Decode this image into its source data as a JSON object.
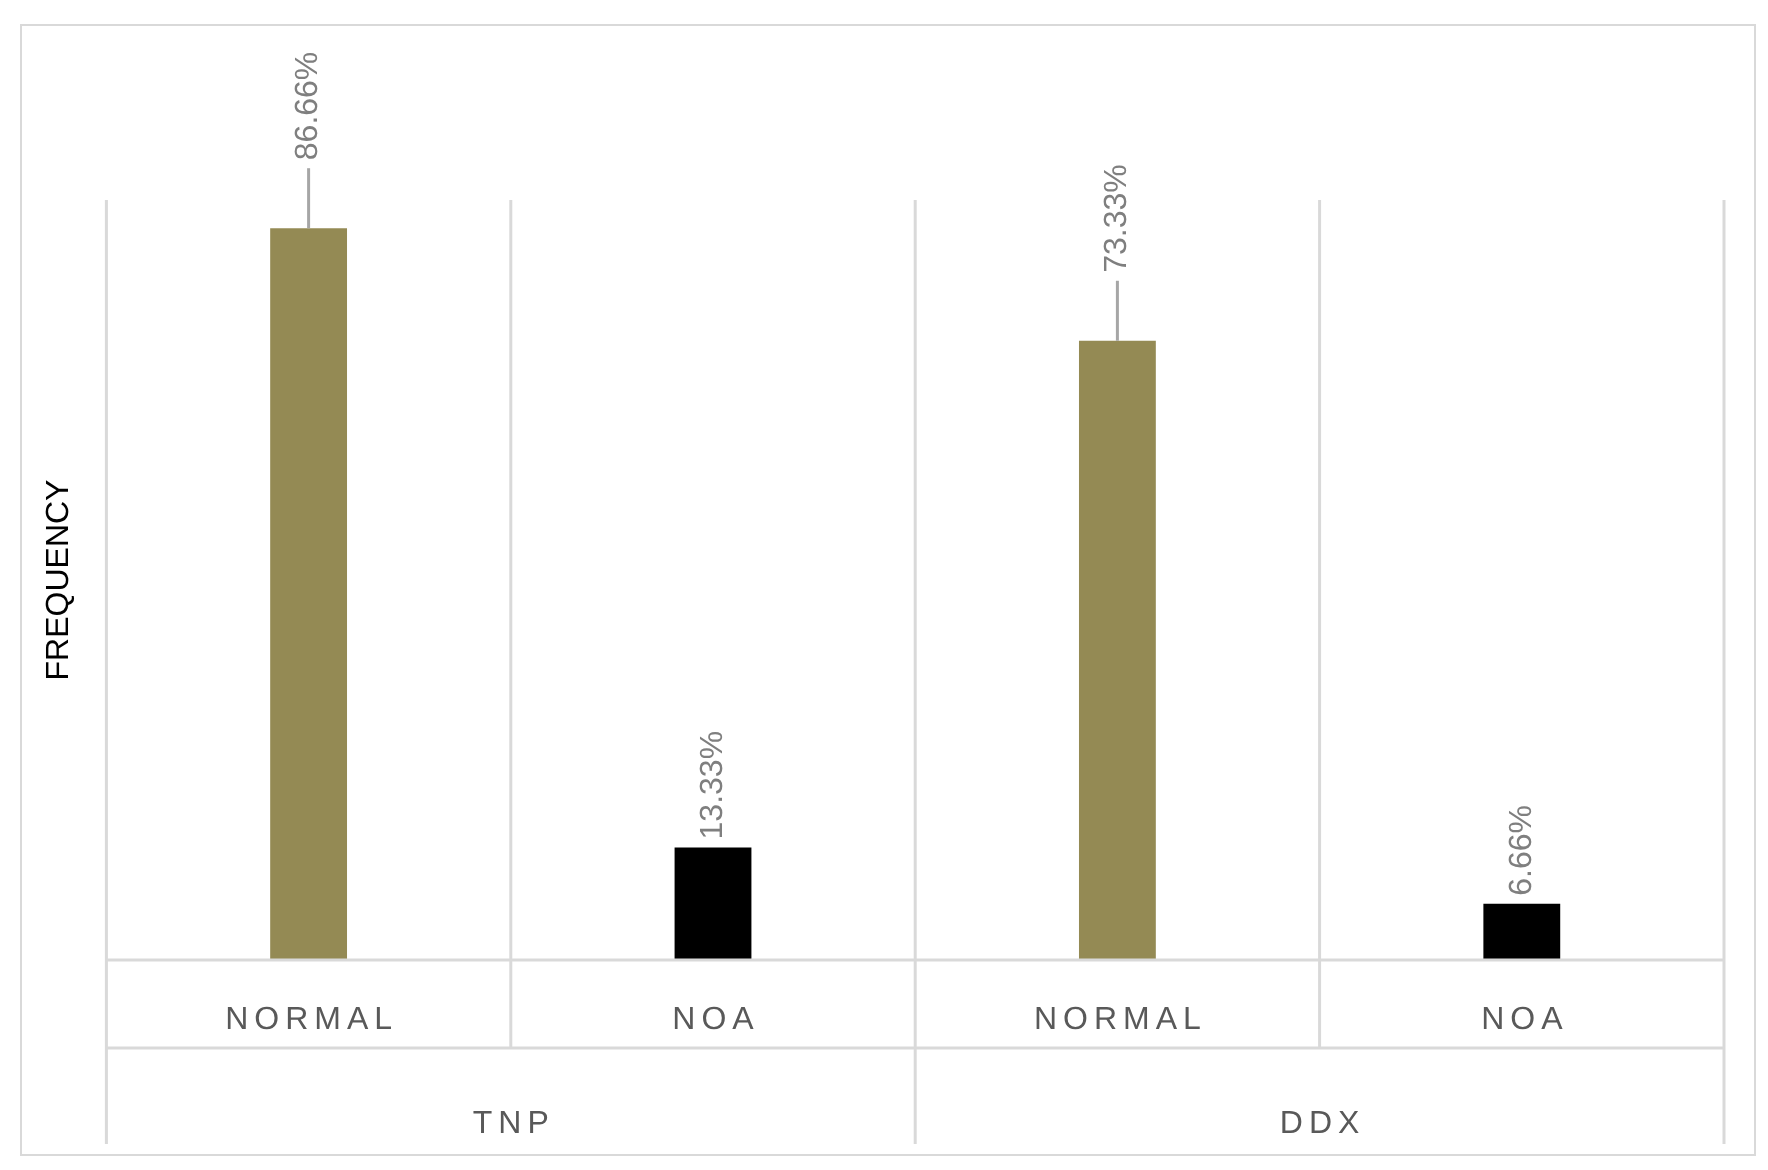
{
  "chart_data": {
    "type": "bar",
    "ylabel": "FREQUENCY",
    "categories": [
      "NORMAL",
      "NOA",
      "NORMAL",
      "NOA"
    ],
    "values": [
      86.66,
      13.33,
      73.33,
      6.66
    ],
    "colors": [
      "#948a54",
      "#000000",
      "#948a54",
      "#000000"
    ],
    "value_labels": [
      "86.66%",
      "13.33%",
      "73.33%",
      "6.66%"
    ],
    "annotations": [
      "TNP",
      "DDX"
    ],
    "grid": "x",
    "legend": false
  }
}
